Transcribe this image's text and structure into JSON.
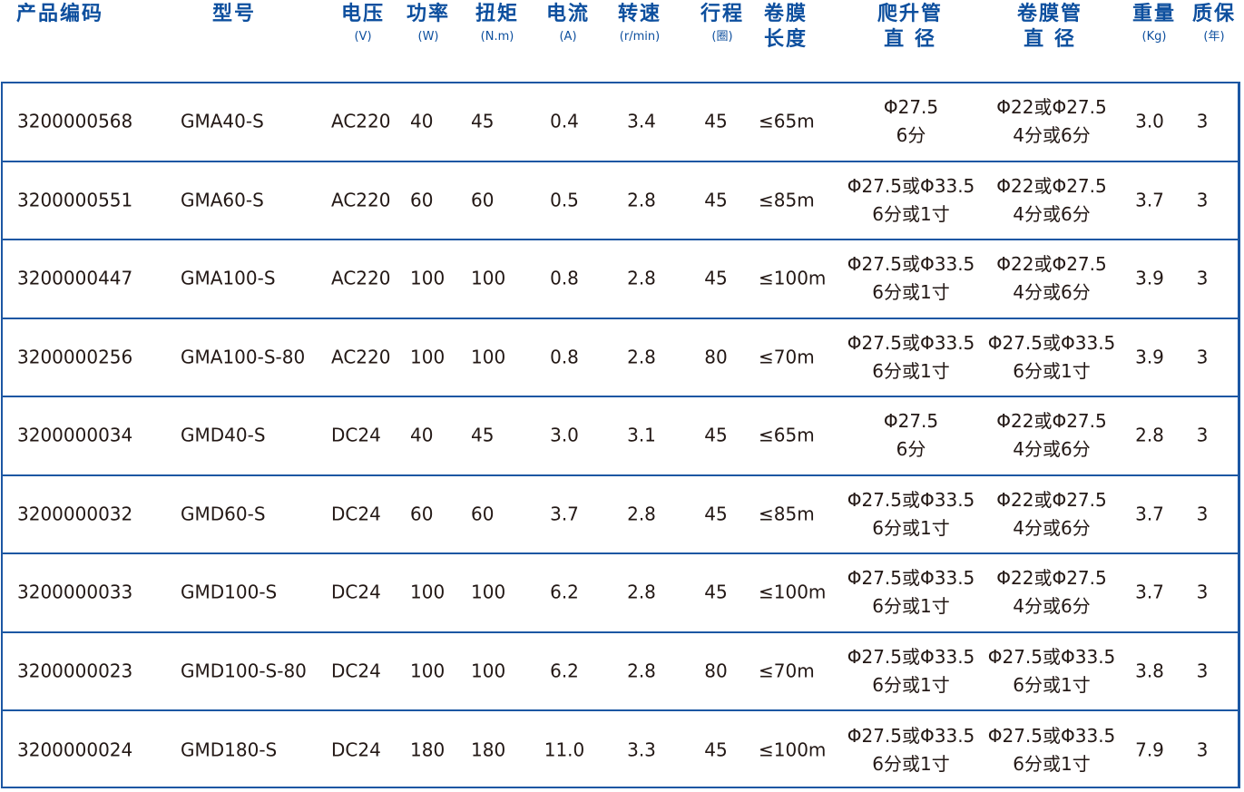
{
  "colors": {
    "header": "#0d4f9e",
    "border": "#1c57a3",
    "text": "#231815"
  },
  "headers": [
    {
      "title": "产品编码",
      "unit": ""
    },
    {
      "title": "型号",
      "unit": ""
    },
    {
      "title": "电压",
      "unit": "(V)"
    },
    {
      "title": "功率",
      "unit": "(W)"
    },
    {
      "title": "扭矩",
      "unit": "(N.m)"
    },
    {
      "title": "电流",
      "unit": "(A)"
    },
    {
      "title": "转速",
      "unit": "(r/min)"
    },
    {
      "title": "行程",
      "unit": "(圈)"
    },
    {
      "title": "卷膜",
      "unit": "长度"
    },
    {
      "title": "爬升管",
      "unit": "直 径"
    },
    {
      "title": "卷膜管",
      "unit": "直 径"
    },
    {
      "title": "重量",
      "unit": "(Kg)"
    },
    {
      "title": "质保",
      "unit": "(年)"
    }
  ],
  "rows": [
    {
      "code": "3200000568",
      "model": "GMA40-S",
      "voltage": "AC220",
      "power": "40",
      "torque": "45",
      "current": "0.4",
      "speed": "3.4",
      "stroke": "45",
      "length": "≤65m",
      "climb1": "Φ27.5",
      "climb2": "6分",
      "film1": "Φ22或Φ27.5",
      "film2": "4分或6分",
      "weight": "3.0",
      "warranty": "3"
    },
    {
      "code": "3200000551",
      "model": "GMA60-S",
      "voltage": "AC220",
      "power": "60",
      "torque": "60",
      "current": "0.5",
      "speed": "2.8",
      "stroke": "45",
      "length": "≤85m",
      "climb1": "Φ27.5或Φ33.5",
      "climb2": "6分或1寸",
      "film1": "Φ22或Φ27.5",
      "film2": "4分或6分",
      "weight": "3.7",
      "warranty": "3"
    },
    {
      "code": "3200000447",
      "model": "GMA100-S",
      "voltage": "AC220",
      "power": "100",
      "torque": "100",
      "current": "0.8",
      "speed": "2.8",
      "stroke": "45",
      "length": "≤100m",
      "climb1": "Φ27.5或Φ33.5",
      "climb2": "6分或1寸",
      "film1": "Φ22或Φ27.5",
      "film2": "4分或6分",
      "weight": "3.9",
      "warranty": "3"
    },
    {
      "code": "3200000256",
      "model": "GMA100-S-80",
      "voltage": "AC220",
      "power": "100",
      "torque": "100",
      "current": "0.8",
      "speed": "2.8",
      "stroke": "80",
      "length": "≤70m",
      "climb1": "Φ27.5或Φ33.5",
      "climb2": "6分或1寸",
      "film1": "Φ27.5或Φ33.5",
      "film2": "6分或1寸",
      "weight": "3.9",
      "warranty": "3"
    },
    {
      "code": "3200000034",
      "model": "GMD40-S",
      "voltage": "DC24",
      "power": "40",
      "torque": "45",
      "current": "3.0",
      "speed": "3.1",
      "stroke": "45",
      "length": "≤65m",
      "climb1": "Φ27.5",
      "climb2": "6分",
      "film1": "Φ22或Φ27.5",
      "film2": "4分或6分",
      "weight": "2.8",
      "warranty": "3"
    },
    {
      "code": "3200000032",
      "model": "GMD60-S",
      "voltage": "DC24",
      "power": "60",
      "torque": "60",
      "current": "3.7",
      "speed": "2.8",
      "stroke": "45",
      "length": "≤85m",
      "climb1": "Φ27.5或Φ33.5",
      "climb2": "6分或1寸",
      "film1": "Φ22或Φ27.5",
      "film2": "4分或6分",
      "weight": "3.7",
      "warranty": "3"
    },
    {
      "code": "3200000033",
      "model": "GMD100-S",
      "voltage": "DC24",
      "power": "100",
      "torque": "100",
      "current": "6.2",
      "speed": "2.8",
      "stroke": "45",
      "length": "≤100m",
      "climb1": "Φ27.5或Φ33.5",
      "climb2": "6分或1寸",
      "film1": "Φ22或Φ27.5",
      "film2": "4分或6分",
      "weight": "3.7",
      "warranty": "3"
    },
    {
      "code": "3200000023",
      "model": "GMD100-S-80",
      "voltage": "DC24",
      "power": "100",
      "torque": "100",
      "current": "6.2",
      "speed": "2.8",
      "stroke": "80",
      "length": "≤70m",
      "climb1": "Φ27.5或Φ33.5",
      "climb2": "6分或1寸",
      "film1": "Φ27.5或Φ33.5",
      "film2": "6分或1寸",
      "weight": "3.8",
      "warranty": "3"
    },
    {
      "code": "3200000024",
      "model": "GMD180-S",
      "voltage": "DC24",
      "power": "180",
      "torque": "180",
      "current": "11.0",
      "speed": "3.3",
      "stroke": "45",
      "length": "≤100m",
      "climb1": "Φ27.5或Φ33.5",
      "climb2": "6分或1寸",
      "film1": "Φ27.5或Φ33.5",
      "film2": "6分或1寸",
      "weight": "7.9",
      "warranty": "3"
    }
  ]
}
